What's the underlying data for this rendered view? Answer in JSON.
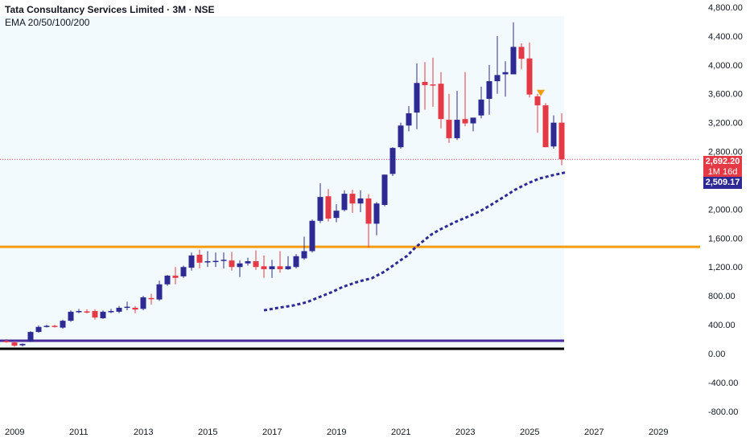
{
  "header": {
    "title": "Tata Consultancy Services Limited · 3M · NSE",
    "indicator": "EMA 20/50/100/200"
  },
  "price_tags": {
    "last_price": "2,692.20",
    "countdown": "1M 16d",
    "ema_value": "2,509.17"
  },
  "colors": {
    "up": "#2e2a94",
    "down": "#e63946",
    "ema": "#2e2a94",
    "support": "#f59c10",
    "purple_line": "#4a2a9a",
    "black_line": "#000000",
    "tint": "#f2fafd"
  },
  "chart_data": {
    "type": "candlestick",
    "title": "Tata Consultancy Services Limited · 3M · NSE",
    "xlabel": "",
    "ylabel": "",
    "ylim": [
      -870,
      4900
    ],
    "xlim": [
      2008.55,
      2030.3
    ],
    "y_ticks": [
      "4,800.00",
      "4,400.00",
      "4,000.00",
      "3,600.00",
      "3,200.00",
      "2,800.00",
      "2,000.00",
      "1,600.00",
      "1,200.00",
      "800.00",
      "400.00",
      "0.00",
      "-400.00",
      "-800.00"
    ],
    "y_tick_values": [
      4800,
      4400,
      4000,
      3600,
      3200,
      2800,
      2000,
      1600,
      1200,
      800,
      400,
      0,
      -400,
      -800
    ],
    "x_ticks": [
      "2009",
      "2011",
      "2013",
      "2015",
      "2017",
      "2019",
      "2021",
      "2023",
      "2025",
      "2027",
      "2029"
    ],
    "x_tick_values": [
      2009,
      2011,
      2013,
      2015,
      2017,
      2019,
      2021,
      2023,
      2025,
      2027,
      2029
    ],
    "start_quarter": 2008.75,
    "ohlc": [
      [
        175,
        200,
        150,
        165
      ],
      [
        155,
        175,
        95,
        110
      ],
      [
        115,
        140,
        100,
        135
      ],
      [
        165,
        310,
        160,
        300
      ],
      [
        300,
        390,
        290,
        370
      ],
      [
        375,
        400,
        360,
        385
      ],
      [
        385,
        400,
        360,
        375
      ],
      [
        360,
        470,
        345,
        455
      ],
      [
        455,
        600,
        440,
        580
      ],
      [
        590,
        620,
        560,
        590
      ],
      [
        585,
        615,
        555,
        580
      ],
      [
        590,
        615,
        470,
        500
      ],
      [
        490,
        600,
        480,
        580
      ],
      [
        585,
        620,
        560,
        590
      ],
      [
        580,
        660,
        560,
        635
      ],
      [
        640,
        720,
        600,
        650
      ],
      [
        635,
        660,
        560,
        610
      ],
      [
        620,
        800,
        600,
        780
      ],
      [
        770,
        830,
        680,
        760
      ],
      [
        750,
        1010,
        730,
        960
      ],
      [
        960,
        1090,
        940,
        1080
      ],
      [
        1080,
        1200,
        960,
        1050
      ],
      [
        1070,
        1220,
        1050,
        1200
      ],
      [
        1190,
        1400,
        1150,
        1360
      ],
      [
        1370,
        1440,
        1180,
        1260
      ],
      [
        1280,
        1420,
        1200,
        1280
      ],
      [
        1280,
        1400,
        1200,
        1285
      ],
      [
        1300,
        1400,
        1180,
        1300
      ],
      [
        1290,
        1410,
        1150,
        1200
      ],
      [
        1200,
        1290,
        1060,
        1250
      ],
      [
        1250,
        1330,
        1220,
        1280
      ],
      [
        1280,
        1430,
        1160,
        1200
      ],
      [
        1210,
        1360,
        1050,
        1170
      ],
      [
        1170,
        1300,
        1050,
        1210
      ],
      [
        1210,
        1420,
        1120,
        1170
      ],
      [
        1170,
        1350,
        1160,
        1210
      ],
      [
        1200,
        1380,
        1180,
        1350
      ],
      [
        1320,
        1620,
        1300,
        1420
      ],
      [
        1420,
        1860,
        1400,
        1840
      ],
      [
        1840,
        2360,
        1810,
        2170
      ],
      [
        2180,
        2280,
        1830,
        1870
      ],
      [
        1880,
        2070,
        1820,
        1980
      ],
      [
        1990,
        2260,
        1970,
        2215
      ],
      [
        2215,
        2270,
        1950,
        2080
      ],
      [
        2080,
        2260,
        1960,
        2150
      ],
      [
        2150,
        2210,
        1470,
        1800
      ],
      [
        1800,
        2100,
        1640,
        2080
      ],
      [
        2060,
        2480,
        2040,
        2480
      ],
      [
        2490,
        2860,
        2460,
        2850
      ],
      [
        2860,
        3200,
        2840,
        3160
      ],
      [
        3160,
        3430,
        3080,
        3330
      ],
      [
        3340,
        4020,
        3110,
        3750
      ],
      [
        3765,
        4040,
        3380,
        3720
      ],
      [
        3730,
        4100,
        3420,
        3715
      ],
      [
        3740,
        3900,
        3120,
        3250
      ],
      [
        3240,
        3600,
        2920,
        2985
      ],
      [
        2985,
        3640,
        2960,
        3240
      ],
      [
        3250,
        3900,
        3150,
        3190
      ],
      [
        3190,
        3260,
        3080,
        3270
      ],
      [
        3300,
        3700,
        3260,
        3520
      ],
      [
        3530,
        4000,
        3310,
        3775
      ],
      [
        3775,
        4400,
        3600,
        3860
      ],
      [
        3870,
        4050,
        3560,
        3900
      ],
      [
        3870,
        4590,
        3870,
        4250
      ],
      [
        4250,
        4300,
        3940,
        4085
      ],
      [
        4090,
        4310,
        3550,
        3590
      ],
      [
        3565,
        3600,
        3060,
        3440
      ],
      [
        3440,
        3470,
        2860,
        2860
      ],
      [
        2870,
        3300,
        2840,
        3200
      ],
      [
        3200,
        3330,
        2610,
        2692
      ]
    ],
    "series": [
      {
        "name": "EMA",
        "type": "line",
        "x": [
          2016.75,
          2017.2,
          2017.7,
          2018.1,
          2018.45,
          2018.85,
          2019.2,
          2019.7,
          2020.1,
          2020.45,
          2020.7,
          2020.95,
          2021.2,
          2021.45,
          2021.7,
          2021.95,
          2022.2,
          2022.45,
          2022.7,
          2023.05,
          2023.45,
          2023.8,
          2024.2,
          2024.55,
          2024.95,
          2025.3,
          2025.7,
          2026.1
        ],
        "y": [
          600,
          635,
          670,
          715,
          780,
          850,
          925,
          1000,
          1045,
          1125,
          1200,
          1280,
          1355,
          1470,
          1560,
          1650,
          1715,
          1770,
          1825,
          1890,
          1970,
          2060,
          2170,
          2270,
          2360,
          2425,
          2470,
          2509
        ]
      }
    ],
    "horizontal_lines": [
      {
        "name": "support",
        "value": 1480
      },
      {
        "name": "purple-line",
        "value": 178
      },
      {
        "name": "black-line",
        "value": 100
      },
      {
        "name": "last-price",
        "value": 2692.2
      }
    ],
    "annotations": [
      {
        "type": "sell-marker",
        "x": 2025.35,
        "y": 3600
      }
    ]
  }
}
